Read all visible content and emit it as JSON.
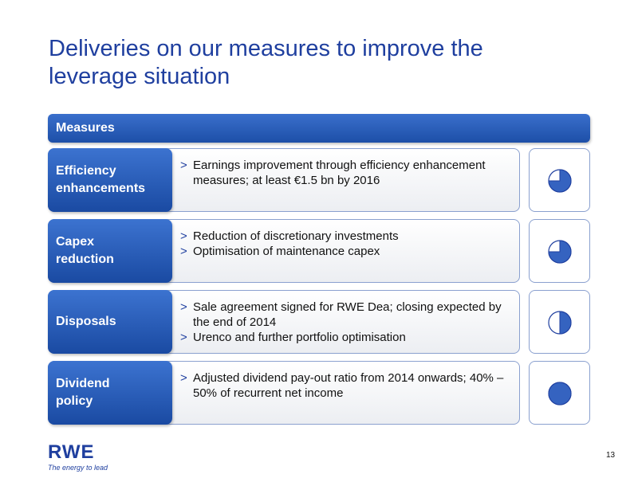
{
  "title": "Deliveries on our measures to improve the leverage situation",
  "header": "Measures",
  "rows": [
    {
      "label": "Efficiency\nenhancements",
      "bullets": [
        "Earnings improvement through efficiency enhancement measures; at least €1.5 bn by 2016"
      ],
      "progress": 0.75
    },
    {
      "label": "Capex\nreduction",
      "bullets": [
        "Reduction of discretionary investments",
        "Optimisation of maintenance capex"
      ],
      "progress": 0.75
    },
    {
      "label": "Disposals",
      "bullets": [
        "Sale agreement signed for RWE Dea; closing expected by the end of 2014",
        "Urenco and further portfolio optimisation"
      ],
      "progress": 0.5
    },
    {
      "label": "Dividend\npolicy",
      "bullets": [
        "Adjusted dividend pay-out ratio from 2014 onwards; 40% – 50% of recurrent net income"
      ],
      "progress": 1.0
    }
  ],
  "bullet_marker": ">",
  "logo": {
    "word": "RWE",
    "tagline": "The energy to lead"
  },
  "page_number": "13",
  "colors": {
    "accent": "#1f3f9f",
    "label_fill": "#2a5bb8",
    "pie_fill": "#3563c0"
  }
}
